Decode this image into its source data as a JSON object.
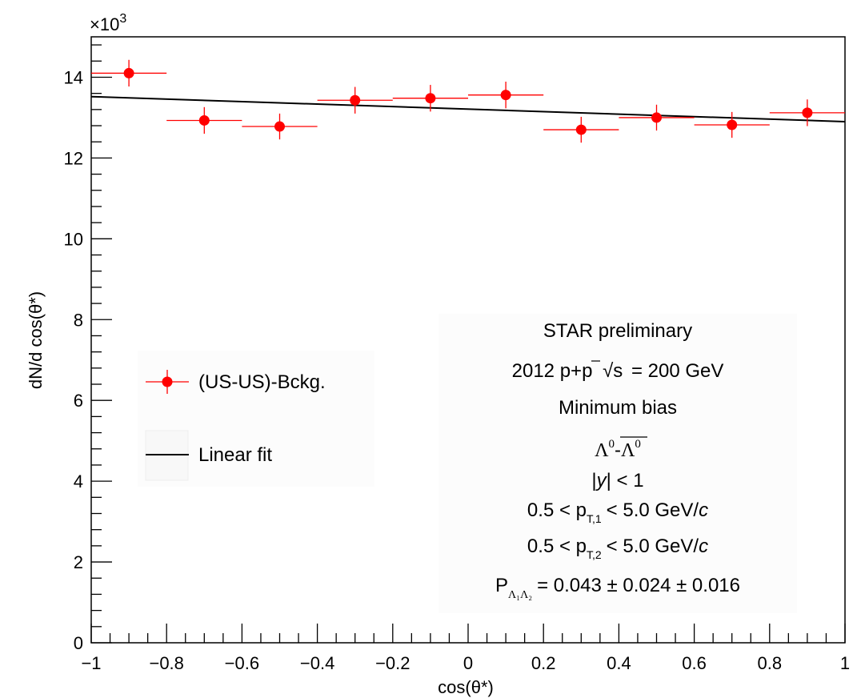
{
  "chart_data": {
    "type": "scatter",
    "xlabel": "cos(θ*)",
    "ylabel": "dN/d cos(θ*)",
    "yexponent_label": "×10",
    "yexponent_power": "3",
    "xlim": [
      -1,
      1
    ],
    "ylim": [
      0,
      15
    ],
    "x_ticks": [
      "−1",
      "−0.8",
      "−0.6",
      "−0.4",
      "−0.2",
      "0",
      "0.2",
      "0.4",
      "0.6",
      "0.8",
      "1"
    ],
    "x_tick_values": [
      -1,
      -0.8,
      -0.6,
      -0.4,
      -0.2,
      0,
      0.2,
      0.4,
      0.6,
      0.8,
      1
    ],
    "y_ticks": [
      "0",
      "2",
      "4",
      "6",
      "8",
      "10",
      "12",
      "14"
    ],
    "y_tick_values": [
      0,
      2,
      4,
      6,
      8,
      10,
      12,
      14
    ],
    "series": [
      {
        "name": "(US-US)-Bckg.",
        "color": "#ff0000",
        "marker": "circle",
        "x": [
          -0.9,
          -0.7,
          -0.5,
          -0.3,
          -0.1,
          0.1,
          0.3,
          0.5,
          0.7,
          0.9
        ],
        "x_err": [
          0.1,
          0.1,
          0.1,
          0.1,
          0.1,
          0.1,
          0.1,
          0.1,
          0.1,
          0.1
        ],
        "y": [
          14.1,
          12.93,
          12.78,
          13.43,
          13.48,
          13.56,
          12.7,
          13.0,
          12.82,
          13.12
        ],
        "y_err": [
          0.33,
          0.33,
          0.32,
          0.33,
          0.33,
          0.33,
          0.32,
          0.32,
          0.32,
          0.33
        ]
      },
      {
        "name": "Linear fit",
        "color": "#000000",
        "type": "line",
        "x": [
          -1,
          1
        ],
        "y": [
          13.52,
          12.9
        ]
      }
    ],
    "legend": {
      "position": "middle-left",
      "entries": [
        "(US-US)-Bckg.",
        "Linear fit"
      ]
    }
  },
  "annotations": {
    "star_label": "STAR preliminary",
    "star_color": "#ff0000",
    "line1_pre": "2012 p+p",
    "line1_root": "√s",
    "line1_post": "= 200 GeV",
    "line2": "Minimum bias",
    "line3_lambda": "Λ",
    "line3_sup": "0",
    "line3_dash": "-",
    "line4_pre": "|",
    "line4_var": "y",
    "line4_post": "| < 1",
    "pt1_pre": "0.5 < p",
    "pt1_sub": "T,1",
    "pt1_post": "< 5.0 GeV/",
    "pt1_c": "c",
    "pt2_pre": "0.5 < p",
    "pt2_sub": "T,2",
    "pt2_post": "< 5.0 GeV/",
    "pt2_c": "c",
    "pol_pre": "P",
    "pol_sub": "Λ₁Λ₂",
    "pol_post": "= 0.043 ± 0.024 ± 0.016"
  }
}
